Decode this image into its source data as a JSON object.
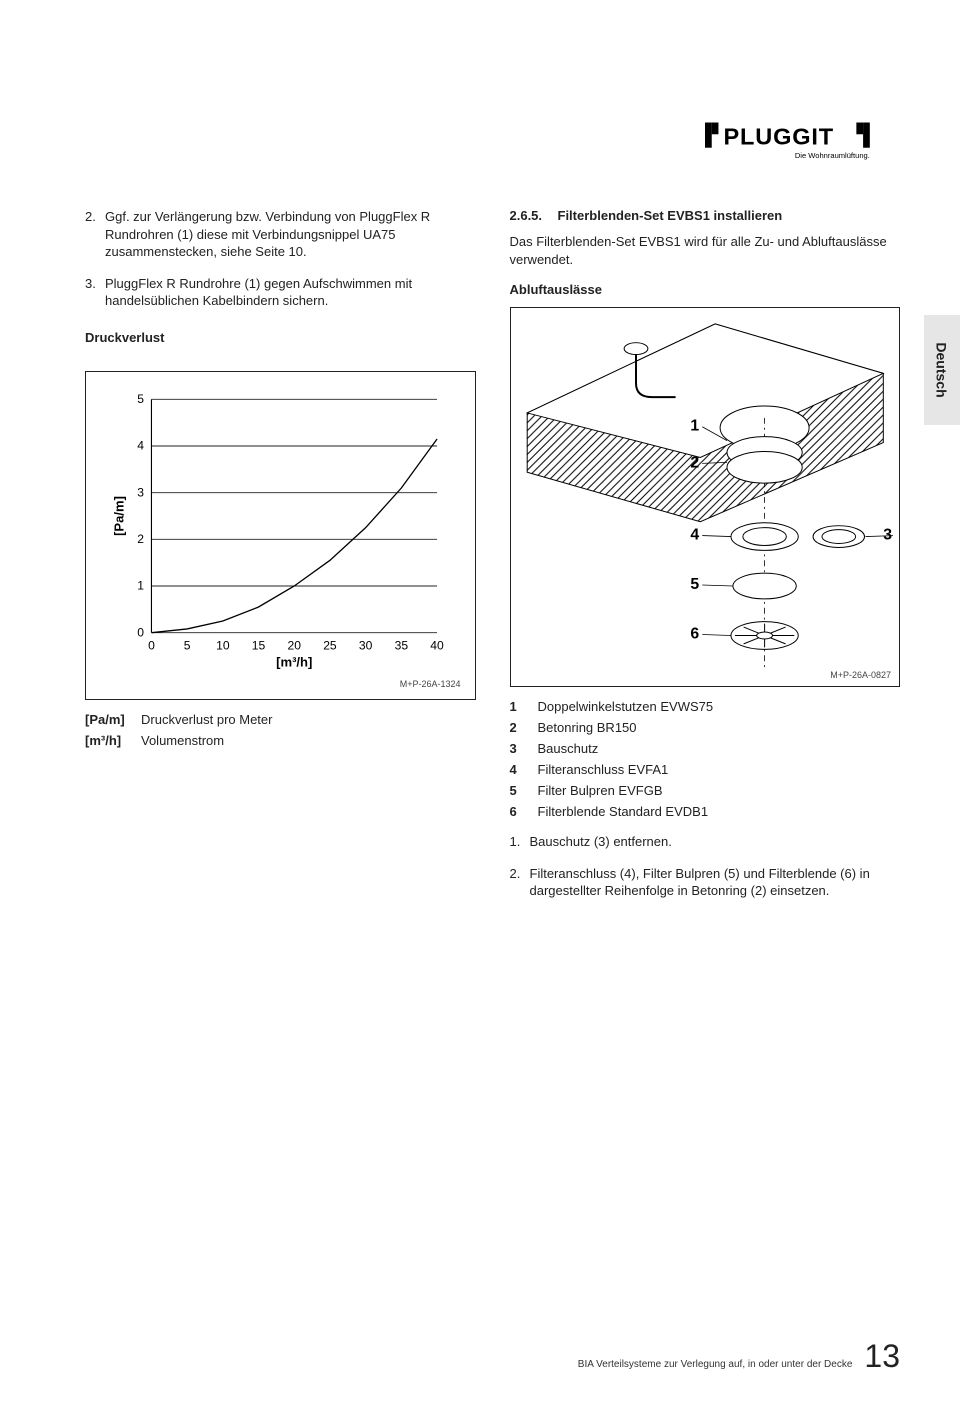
{
  "logo": {
    "brand": "PLUGGIT",
    "tagline": "Die Wohnraumlüftung."
  },
  "side_tab": "Deutsch",
  "left": {
    "items": [
      {
        "num": "2.",
        "text": "Ggf. zur Verlängerung bzw. Verbindung von PluggFlex R Rundrohren (1) diese mit Verbindungsnippel UA75 zusammenstecken, siehe Seite 10."
      },
      {
        "num": "3.",
        "text": "PluggFlex R Rundrohre (1) gegen Aufschwimmen mit handelsüblichen Kabelbindern sichern."
      }
    ],
    "subhead": "Druckverlust",
    "chart": {
      "type": "line",
      "x_label": "[m³/h]",
      "y_label": "[Pa/m]",
      "xlim": [
        0,
        40
      ],
      "ylim": [
        0,
        5
      ],
      "x_ticks": [
        0,
        5,
        10,
        15,
        20,
        25,
        30,
        35,
        40
      ],
      "y_ticks": [
        0,
        1,
        2,
        3,
        4,
        5
      ],
      "grid_y": true,
      "grid_color": "#222",
      "line_color": "#000",
      "line_width": 1.4,
      "points": [
        [
          0,
          0
        ],
        [
          5,
          0.08
        ],
        [
          10,
          0.25
        ],
        [
          15,
          0.55
        ],
        [
          20,
          1.0
        ],
        [
          25,
          1.55
        ],
        [
          30,
          2.25
        ],
        [
          35,
          3.1
        ],
        [
          40,
          4.15
        ]
      ],
      "ref": "M+P-26A-1324"
    },
    "legend": [
      {
        "k": "[Pa/m]",
        "v": "Druckverlust pro Meter"
      },
      {
        "k": "[m³/h]",
        "v": "Volumenstrom"
      }
    ]
  },
  "right": {
    "sec_num": "2.6.5.",
    "sec_title": "Filterblenden-Set EVBS1 installieren",
    "intro": "Das Filterblenden-Set EVBS1 wird für alle Zu- und Abluftauslässe verwendet.",
    "sub": "Abluftauslässe",
    "diagram": {
      "callouts": [
        "1",
        "2",
        "3",
        "4",
        "5",
        "6"
      ],
      "ref": "M+P-26A-0827"
    },
    "parts": [
      {
        "k": "1",
        "v": "Doppelwinkelstutzen EVWS75"
      },
      {
        "k": "2",
        "v": "Betonring BR150"
      },
      {
        "k": "3",
        "v": "Bauschutz"
      },
      {
        "k": "4",
        "v": "Filteranschluss EVFA1"
      },
      {
        "k": "5",
        "v": "Filter Bulpren EVFGB"
      },
      {
        "k": "6",
        "v": "Filterblende Standard EVDB1"
      }
    ],
    "steps": [
      {
        "num": "1.",
        "text": "Bauschutz (3) entfernen."
      },
      {
        "num": "2.",
        "text": "Filteranschluss (4), Filter Bulpren (5) und Filterblende (6) in dargestellter Reihenfolge in Betonring (2) einsetzen."
      }
    ]
  },
  "footer": {
    "doc": "BIA Verteilsysteme zur Verlegung auf, in oder unter der Decke",
    "page": "13"
  }
}
